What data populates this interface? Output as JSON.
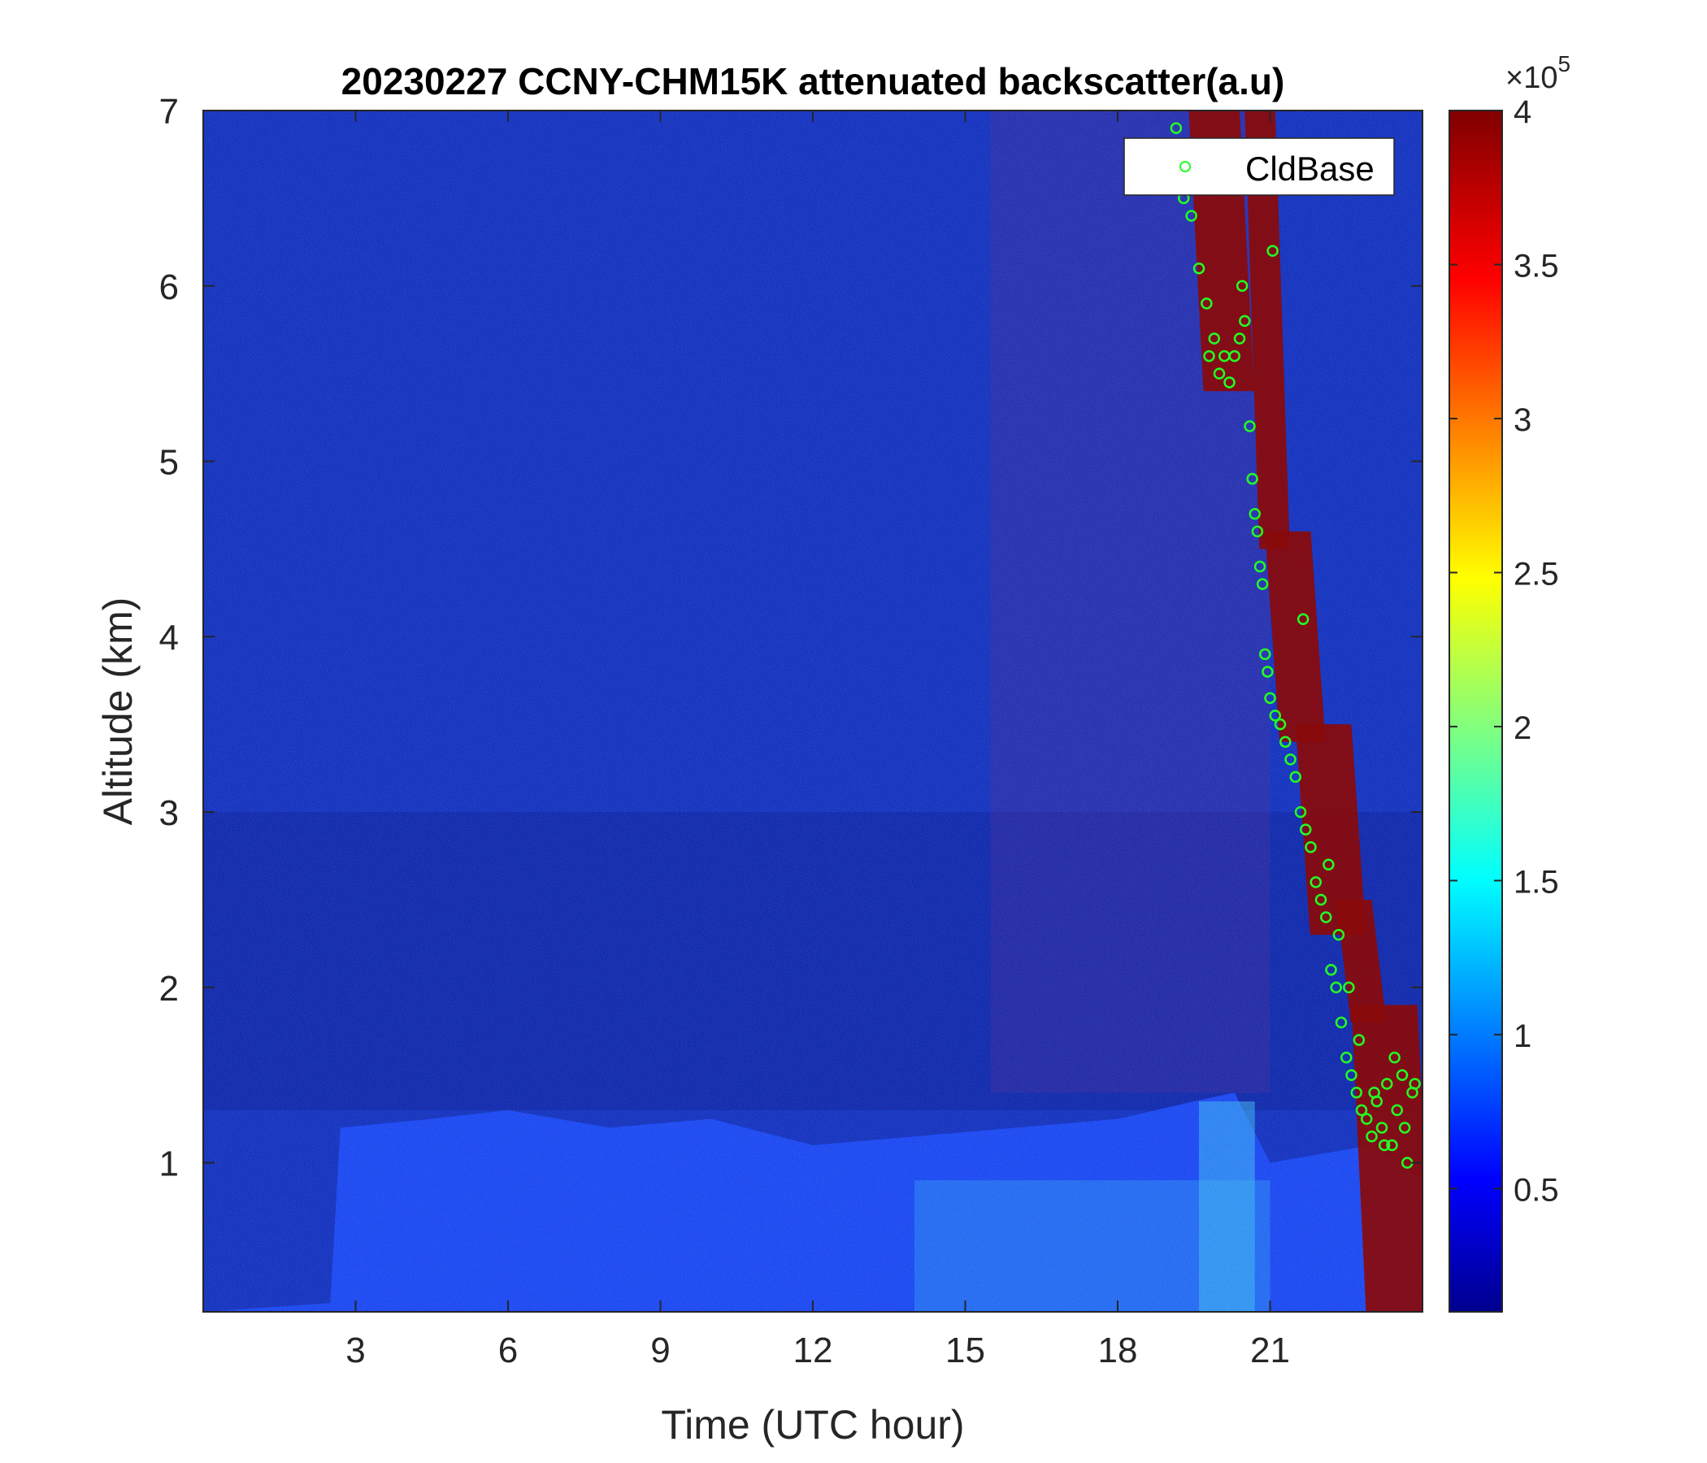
{
  "chart_data": {
    "type": "heatmap",
    "title": "20230227 CCNY-CHM15K attenuated backscatter(a.u)",
    "xlabel": "Time (UTC hour)",
    "ylabel": "Altitude (km)",
    "xlim": [
      0,
      24
    ],
    "ylim": [
      0.15,
      7
    ],
    "xticks": [
      3,
      6,
      9,
      12,
      15,
      18,
      21
    ],
    "yticks": [
      1,
      2,
      3,
      4,
      5,
      6,
      7
    ],
    "colorbar": {
      "colormap": "jet",
      "clim": [
        0.1,
        4
      ],
      "ticks": [
        0.5,
        1,
        1.5,
        2,
        2.5,
        3,
        3.5,
        4
      ],
      "exponent_label": "×10",
      "exponent": "5"
    },
    "legend": {
      "location": "top-right",
      "entries": [
        "CldBase"
      ]
    },
    "colors": {
      "marker": "#22ff22",
      "axis": "#262626"
    },
    "boundary_layer": [
      {
        "t": 0.0,
        "h": 0.15
      },
      {
        "t": 2.5,
        "h": 0.2
      },
      {
        "t": 2.7,
        "h": 1.2
      },
      {
        "t": 4.5,
        "h": 1.25
      },
      {
        "t": 6.0,
        "h": 1.3
      },
      {
        "t": 8.0,
        "h": 1.2
      },
      {
        "t": 10.0,
        "h": 1.25
      },
      {
        "t": 12.0,
        "h": 1.1
      },
      {
        "t": 14.0,
        "h": 1.15
      },
      {
        "t": 16.0,
        "h": 1.2
      },
      {
        "t": 18.0,
        "h": 1.25
      },
      {
        "t": 19.5,
        "h": 1.35
      },
      {
        "t": 20.3,
        "h": 1.4
      },
      {
        "t": 21.0,
        "h": 1.0
      },
      {
        "t": 22.0,
        "h": 1.05
      },
      {
        "t": 23.0,
        "h": 1.1
      },
      {
        "t": 24.0,
        "h": 0.9
      }
    ],
    "cloud_bands": [
      {
        "t_left": 19.4,
        "t_right": 20.4,
        "h_bottom": 5.4,
        "h_top": 7.0
      },
      {
        "t_left": 20.5,
        "t_right": 21.1,
        "h_bottom": 4.5,
        "h_top": 7.0
      },
      {
        "t_left": 20.9,
        "t_right": 21.8,
        "h_bottom": 3.4,
        "h_top": 4.6
      },
      {
        "t_left": 21.5,
        "t_right": 22.6,
        "h_bottom": 2.3,
        "h_top": 3.5
      },
      {
        "t_left": 22.3,
        "t_right": 23.0,
        "h_bottom": 1.8,
        "h_top": 2.5
      },
      {
        "t_left": 22.6,
        "t_right": 23.9,
        "h_bottom": 0.15,
        "h_top": 1.9
      }
    ],
    "series": [
      {
        "name": "CldBase",
        "type": "scatter",
        "x": [
          19.15,
          19.3,
          19.45,
          19.6,
          19.75,
          19.8,
          19.9,
          20.0,
          20.1,
          20.2,
          20.3,
          20.4,
          20.5,
          20.6,
          20.65,
          20.7,
          20.75,
          20.8,
          20.85,
          20.9,
          20.95,
          21.0,
          21.1,
          21.2,
          21.3,
          21.4,
          21.5,
          21.6,
          21.7,
          21.8,
          21.9,
          22.0,
          22.1,
          22.2,
          22.3,
          22.4,
          22.5,
          22.6,
          22.7,
          22.8,
          22.9,
          23.0,
          23.1,
          23.2,
          23.3,
          23.4,
          23.5,
          23.6,
          23.7,
          23.8,
          22.15,
          22.35,
          22.55,
          22.75,
          23.05,
          23.25,
          23.45,
          23.65,
          23.85,
          21.05,
          21.65,
          20.45
        ],
        "y": [
          6.9,
          6.5,
          6.4,
          6.1,
          5.9,
          5.6,
          5.7,
          5.5,
          5.6,
          5.45,
          5.6,
          5.7,
          5.8,
          5.2,
          4.9,
          4.7,
          4.6,
          4.4,
          4.3,
          3.9,
          3.8,
          3.65,
          3.55,
          3.5,
          3.4,
          3.3,
          3.2,
          3.0,
          2.9,
          2.8,
          2.6,
          2.5,
          2.4,
          2.1,
          2.0,
          1.8,
          1.6,
          1.5,
          1.4,
          1.3,
          1.25,
          1.15,
          1.35,
          1.2,
          1.45,
          1.1,
          1.3,
          1.5,
          1.0,
          1.4,
          2.7,
          2.3,
          2.0,
          1.7,
          1.4,
          1.1,
          1.6,
          1.2,
          1.45,
          6.2,
          4.1,
          6.0
        ]
      }
    ]
  }
}
